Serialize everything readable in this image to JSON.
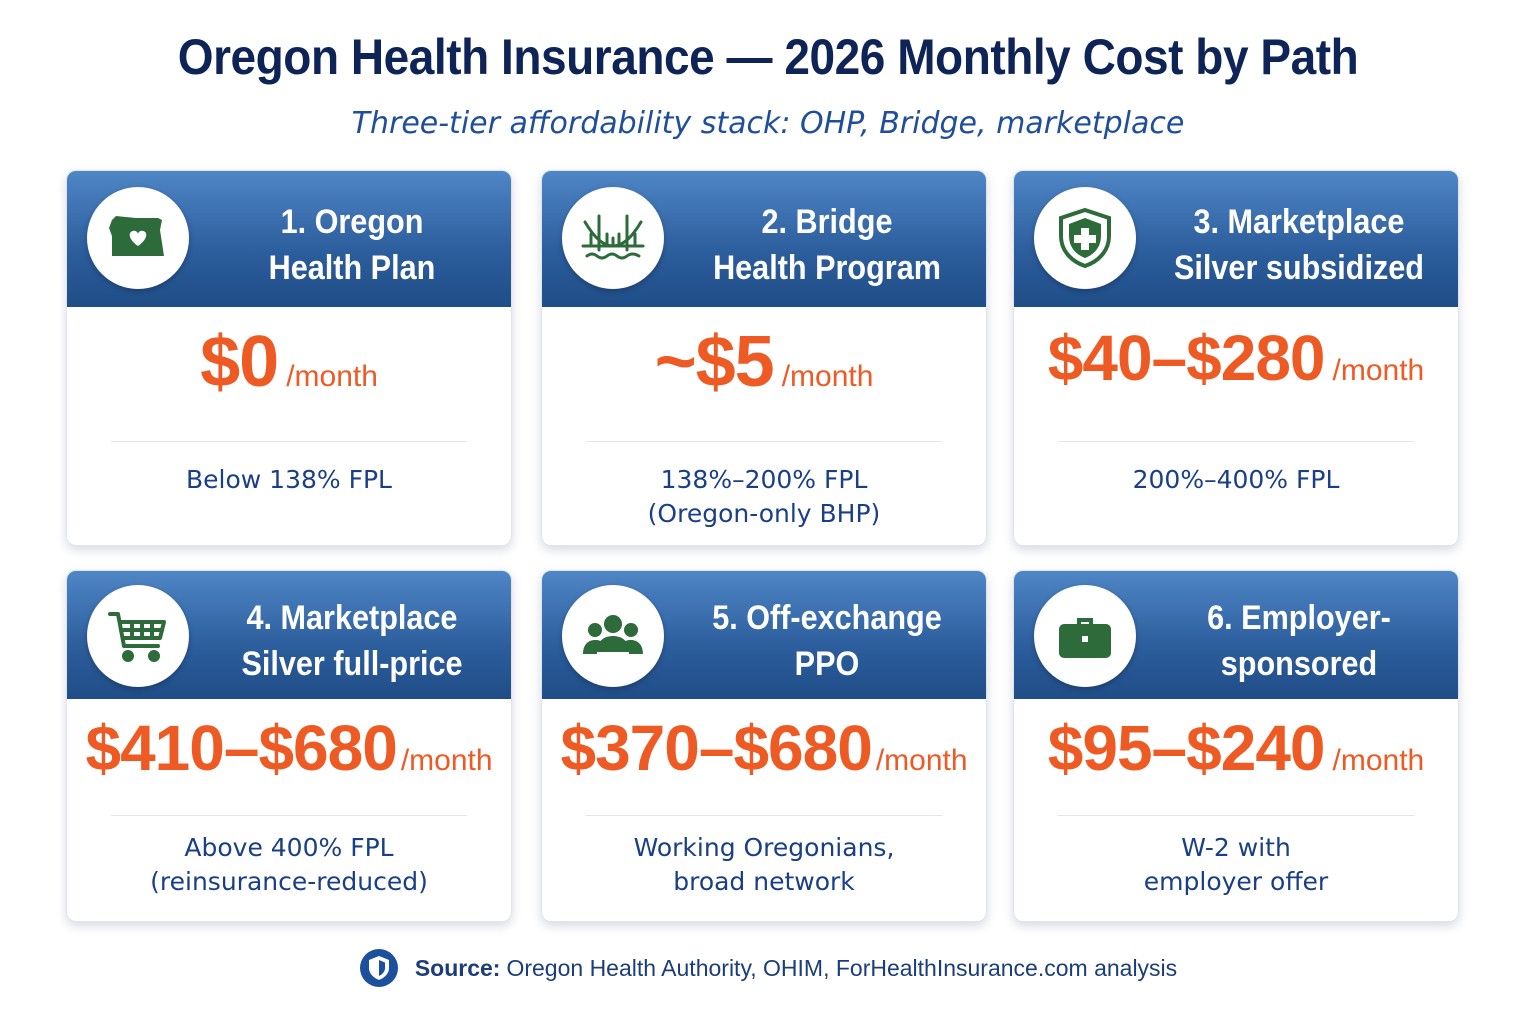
{
  "title": "Oregon Health Insurance — 2026 Monthly Cost by Path",
  "subtitle": "Three-tier affordability stack: OHP, Bridge, marketplace",
  "colors": {
    "header": "#2c5d9c",
    "price": "#ee5a24",
    "icon": "#2e6b3a",
    "title": "#0e2456"
  },
  "cards": [
    {
      "title": "1. Oregon\nHealth Plan",
      "icon": "oregon-heart-icon",
      "price": "$0",
      "unit": "/month",
      "desc": "Below 138% FPL"
    },
    {
      "title": "2. Bridge\nHealth Program",
      "icon": "bridge-icon",
      "price": "~$5",
      "unit": "/month",
      "desc": "138%–200% FPL\n(Oregon-only BHP)"
    },
    {
      "title": "3. Marketplace\nSilver subsidized",
      "icon": "shield-cross-icon",
      "price": "$40–$280",
      "unit": "/month",
      "desc": "200%–400% FPL"
    },
    {
      "title": "4. Marketplace\nSilver full-price",
      "icon": "cart-icon",
      "price": "$410–$680",
      "unit": "/month",
      "desc": "Above 400% FPL\n(reinsurance-reduced)"
    },
    {
      "title": "5. Off-exchange\nPPO",
      "icon": "group-icon",
      "price": "$370–$680",
      "unit": "/month",
      "desc": "Working Oregonians,\nbroad network"
    },
    {
      "title": "6. Employer-\nsponsored",
      "icon": "briefcase-icon",
      "price": "$95–$240",
      "unit": "/month",
      "desc": "W-2 with\nemployer offer"
    }
  ],
  "footer": {
    "label": "Source:",
    "text": "Oregon Health Authority, OHIM, ForHealthInsurance.com analysis",
    "icon": "shield-icon"
  }
}
